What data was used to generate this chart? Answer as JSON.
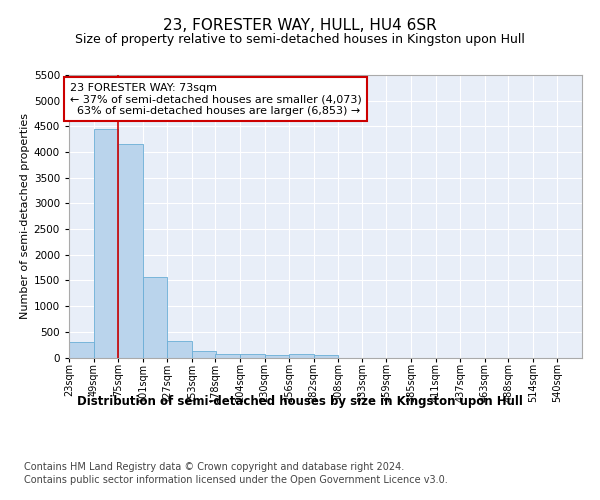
{
  "title": "23, FORESTER WAY, HULL, HU4 6SR",
  "subtitle": "Size of property relative to semi-detached houses in Kingston upon Hull",
  "xlabel": "Distribution of semi-detached houses by size in Kingston upon Hull",
  "ylabel": "Number of semi-detached properties",
  "footer1": "Contains HM Land Registry data © Crown copyright and database right 2024.",
  "footer2": "Contains public sector information licensed under the Open Government Licence v3.0.",
  "property_label": "23 FORESTER WAY: 73sqm",
  "pct_smaller": 37,
  "pct_larger": 63,
  "count_smaller": 4073,
  "count_larger": 6853,
  "bin_labels": [
    "23sqm",
    "49sqm",
    "75sqm",
    "101sqm",
    "127sqm",
    "153sqm",
    "178sqm",
    "204sqm",
    "230sqm",
    "256sqm",
    "282sqm",
    "308sqm",
    "333sqm",
    "359sqm",
    "385sqm",
    "411sqm",
    "437sqm",
    "463sqm",
    "488sqm",
    "514sqm",
    "540sqm"
  ],
  "bin_left_edges": [
    23,
    49,
    75,
    101,
    127,
    153,
    178,
    204,
    230,
    256,
    282,
    308,
    333,
    359,
    385,
    411,
    437,
    463,
    488,
    514,
    540
  ],
  "bar_heights": [
    300,
    4450,
    4150,
    1570,
    325,
    125,
    75,
    60,
    55,
    60,
    55,
    0,
    0,
    0,
    0,
    0,
    0,
    0,
    0,
    0,
    0
  ],
  "bar_color": "#bad4ec",
  "bar_edgecolor": "#6aaed6",
  "redline_x": 75,
  "ylim": [
    0,
    5500
  ],
  "yticks": [
    0,
    500,
    1000,
    1500,
    2000,
    2500,
    3000,
    3500,
    4000,
    4500,
    5000,
    5500
  ],
  "background_color": "#e8eef8",
  "grid_color": "#ffffff",
  "annotation_box_edgecolor": "#cc0000",
  "redline_color": "#cc0000",
  "title_fontsize": 11,
  "subtitle_fontsize": 9,
  "footer_fontsize": 7
}
